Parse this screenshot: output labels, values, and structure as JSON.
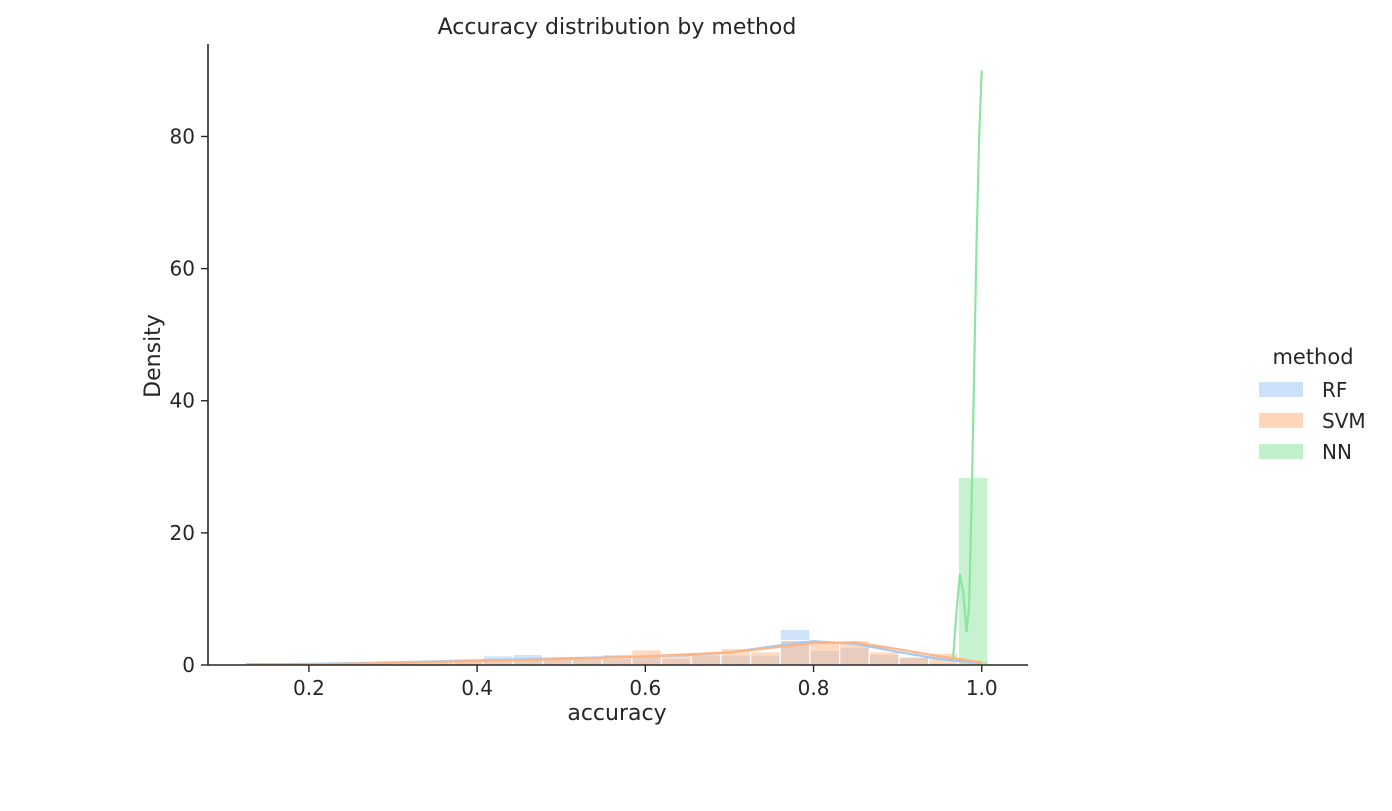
{
  "chart_data": {
    "type": "histogram",
    "title": "Accuracy distribution by method",
    "xlabel": "accuracy",
    "ylabel": "Density",
    "xlim": [
      0.08,
      1.055
    ],
    "ylim": [
      0,
      94
    ],
    "xticks": [
      0.2,
      0.4,
      0.6,
      0.8,
      1.0
    ],
    "xtick_labels": [
      "0.2",
      "0.4",
      "0.6",
      "0.8",
      "1.0"
    ],
    "yticks": [
      0,
      20,
      40,
      60,
      80
    ],
    "ytick_labels": [
      "0",
      "20",
      "40",
      "60",
      "80"
    ],
    "grid": false,
    "legend": {
      "title": "method",
      "position": "right"
    },
    "bin_width": 0.0353,
    "bin_start": 0.125,
    "series": [
      {
        "name": "RF",
        "color": "#a1c9f4",
        "hist_values": [
          0.1,
          0.1,
          0.2,
          0.2,
          0.2,
          0.6,
          0.3,
          0.5,
          1.4,
          1.6,
          1.1,
          1.3,
          1.0,
          1.3,
          1.0,
          1.5,
          1.5,
          1.5,
          5.4,
          2.2,
          2.7,
          1.6,
          1.2,
          0.3,
          0.0
        ],
        "kde_x": [
          0.125,
          0.2,
          0.3,
          0.4,
          0.5,
          0.6,
          0.65,
          0.7,
          0.75,
          0.8,
          0.85,
          0.9,
          0.95,
          1.0
        ],
        "kde_y": [
          0.1,
          0.15,
          0.4,
          0.7,
          1.0,
          1.3,
          1.5,
          1.9,
          2.8,
          3.6,
          3.2,
          2.0,
          0.9,
          0.3
        ]
      },
      {
        "name": "SVM",
        "color": "#ffb482",
        "hist_values": [
          0.1,
          0.1,
          0.1,
          0.2,
          0.4,
          0.3,
          0.5,
          0.6,
          0.8,
          0.9,
          1.1,
          1.0,
          1.6,
          2.3,
          1.5,
          1.8,
          2.5,
          2.0,
          3.7,
          3.4,
          3.7,
          2.0,
          1.2,
          1.8,
          0.6
        ],
        "kde_x": [
          0.125,
          0.2,
          0.3,
          0.4,
          0.5,
          0.6,
          0.65,
          0.7,
          0.75,
          0.8,
          0.85,
          0.9,
          0.95,
          1.0
        ],
        "kde_y": [
          0.1,
          0.1,
          0.3,
          0.6,
          0.9,
          1.3,
          1.6,
          1.9,
          2.6,
          3.3,
          3.4,
          2.4,
          1.3,
          0.4
        ]
      },
      {
        "name": "NN",
        "color": "#8de5a1",
        "hist_values": [
          0,
          0,
          0,
          0,
          0,
          0,
          0,
          0,
          0,
          0,
          0,
          0,
          0,
          0,
          0,
          0,
          0,
          0,
          0,
          0,
          0,
          0,
          0,
          0,
          28.4
        ],
        "kde_x": [
          0.966,
          0.97,
          0.974,
          0.978,
          0.982,
          0.985,
          0.988,
          0.991,
          0.994,
          0.997,
          1.0
        ],
        "kde_y": [
          1.0,
          8.0,
          13.8,
          11.0,
          5.0,
          9.0,
          25.0,
          45.0,
          65.0,
          80.0,
          90.0
        ]
      }
    ]
  }
}
